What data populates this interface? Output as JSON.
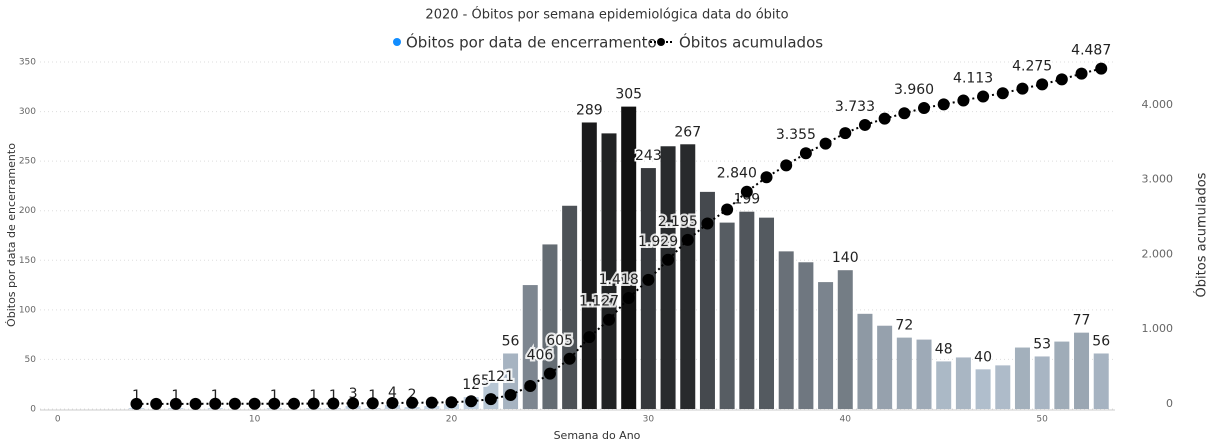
{
  "chart_data": {
    "type": "bar_line",
    "title": "2020 - Óbitos por semana epidemiológica data do óbito",
    "xlabel": "Semana do Ano",
    "ylabel": "Óbitos por data de encerramento",
    "y2label": "Óbitos acumulados",
    "x": [
      4,
      5,
      6,
      7,
      8,
      9,
      10,
      11,
      12,
      13,
      14,
      15,
      16,
      17,
      18,
      19,
      20,
      21,
      22,
      23,
      24,
      25,
      26,
      27,
      28,
      29,
      30,
      31,
      32,
      33,
      34,
      35,
      36,
      37,
      38,
      39,
      40,
      41,
      42,
      43,
      44,
      45,
      46,
      47,
      48,
      49,
      50,
      51,
      52,
      53
    ],
    "xlim": [
      -0.9,
      53.7
    ],
    "xticks": [
      0,
      10,
      20,
      30,
      40,
      50
    ],
    "ylim": [
      0,
      350
    ],
    "yticks": [
      0,
      50,
      100,
      150,
      200,
      250,
      300,
      350
    ],
    "y2lim": [
      -67,
      4575
    ],
    "y2ticks": [
      0,
      {
        "value": 1000,
        "label": "1.000"
      },
      {
        "value": 2000,
        "label": "2.000"
      },
      {
        "value": 3000,
        "label": "3.000"
      },
      {
        "value": 4000,
        "label": "4.000"
      }
    ],
    "grid": true,
    "legend": "top",
    "series": [
      {
        "name": "Óbitos por data de encerramento",
        "color": "#118dff",
        "kind": "bar",
        "color_scale": {
          "low": "#c8d8e8",
          "high": "#111111"
        },
        "values": [
          1,
          0,
          1,
          0,
          1,
          0,
          0,
          1,
          0,
          1,
          1,
          3,
          1,
          4,
          2,
          3,
          5,
          12,
          28,
          56,
          125,
          166,
          205,
          289,
          278,
          305,
          243,
          265,
          267,
          219,
          188,
          199,
          193,
          159,
          148,
          128,
          140,
          96,
          84,
          72,
          70,
          48,
          52,
          40,
          44,
          62,
          53,
          68,
          77,
          56
        ],
        "value_labels": [
          "1",
          null,
          "1",
          null,
          "1",
          null,
          null,
          "1",
          null,
          "1",
          "1",
          "3",
          "1",
          "4",
          "2",
          null,
          null,
          "12",
          null,
          "56",
          null,
          null,
          null,
          "289",
          null,
          "305",
          "243",
          null,
          "267",
          null,
          null,
          "199",
          null,
          null,
          null,
          null,
          "140",
          null,
          null,
          "72",
          null,
          "48",
          null,
          "40",
          null,
          null,
          "53",
          null,
          "77",
          "56"
        ]
      },
      {
        "name": "Óbitos acumulados",
        "color": "#000000",
        "kind": "line",
        "axis": "y2",
        "values": [
          1,
          1,
          2,
          2,
          3,
          3,
          3,
          4,
          4,
          5,
          6,
          9,
          10,
          14,
          16,
          19,
          24,
          36,
          65,
          121,
          241,
          406,
          605,
          894,
          1127,
          1418,
          1661,
          1929,
          2195,
          2414,
          2602,
          2840,
          3033,
          3192,
          3355,
          3483,
          3623,
          3733,
          3817,
          3889,
          3960,
          4008,
          4060,
          4113,
          4157,
          4219,
          4275,
          4343,
          4420,
          4487
        ],
        "value_labels": [
          null,
          null,
          null,
          null,
          null,
          null,
          null,
          null,
          null,
          null,
          null,
          null,
          null,
          null,
          null,
          null,
          null,
          null,
          "65",
          "121",
          null,
          "406",
          "605",
          null,
          "1.127",
          "1.418",
          null,
          "1.929",
          "2.195",
          null,
          null,
          "2.840",
          null,
          null,
          "3.355",
          null,
          null,
          "3.733",
          null,
          null,
          "3.960",
          null,
          null,
          "4.113",
          null,
          null,
          "4.275",
          null,
          null,
          "4.487"
        ]
      }
    ]
  }
}
